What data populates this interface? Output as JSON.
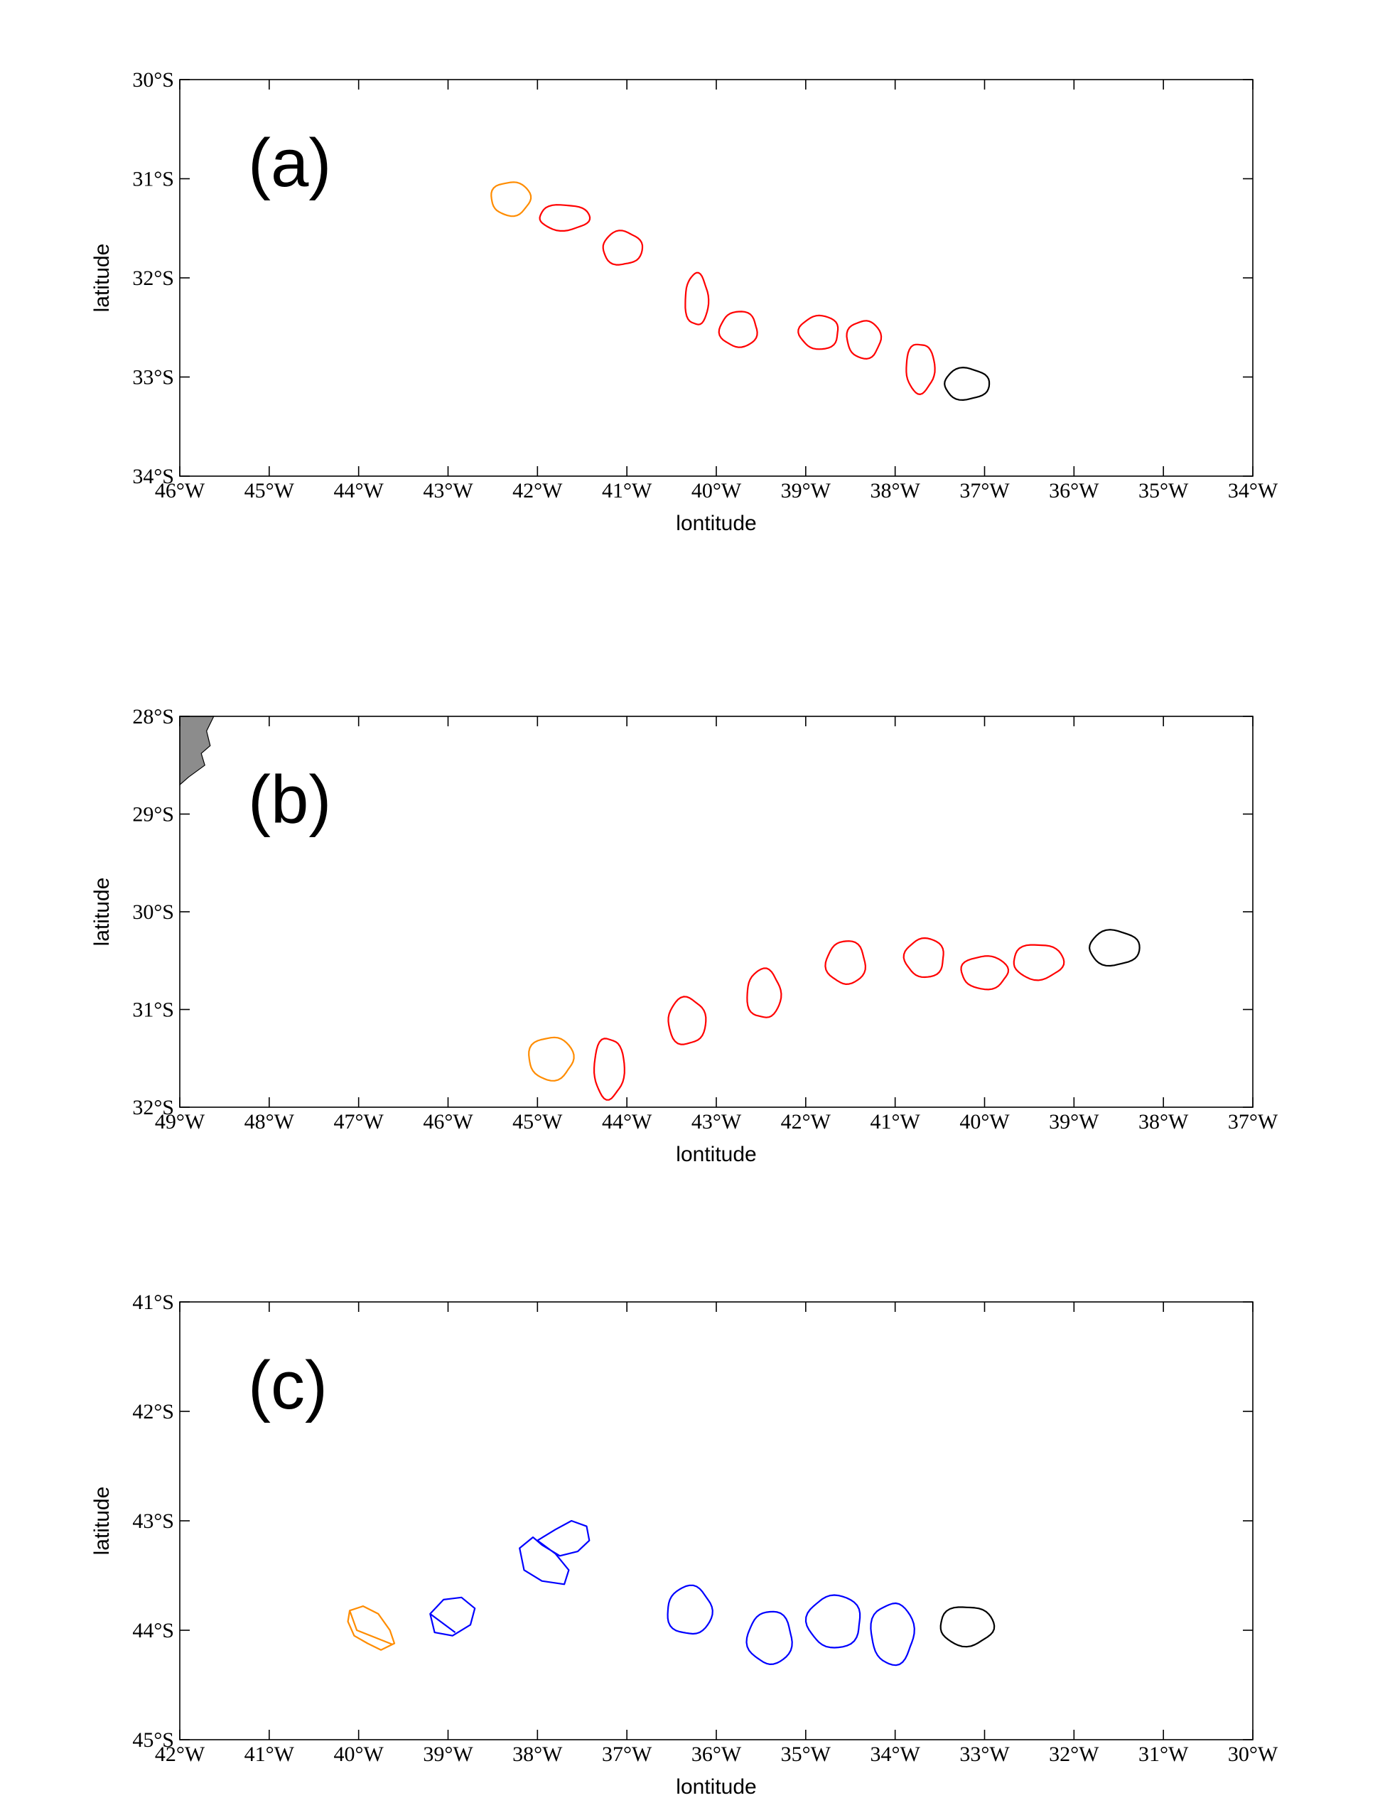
{
  "colors": {
    "orange": "#ff8c00",
    "red": "#ff0000",
    "blue": "#0000ff",
    "black": "#000000",
    "land": "#8c8c8c"
  },
  "chart_data": [
    {
      "type": "line",
      "panel_label": "(a)",
      "xlabel": "lontitude",
      "ylabel": "latitude",
      "xlim": [
        -46,
        -34
      ],
      "ylim": [
        -34,
        -30
      ],
      "x_ticks": [
        -46,
        -45,
        -44,
        -43,
        -42,
        -41,
        -40,
        -39,
        -38,
        -37,
        -36,
        -35,
        -34
      ],
      "x_tick_labels": [
        "46°W",
        "45°W",
        "44°W",
        "43°W",
        "42°W",
        "41°W",
        "40°W",
        "39°W",
        "38°W",
        "37°W",
        "36°W",
        "35°W",
        "34°W"
      ],
      "y_ticks": [
        -30,
        -31,
        -32,
        -33,
        -34
      ],
      "y_tick_labels": [
        "30°S",
        "31°S",
        "32°S",
        "33°S",
        "34°S"
      ],
      "grid": false,
      "land": [],
      "eddies": [
        {
          "color": "orange",
          "cx": -42.3,
          "cy": -31.2,
          "rx": 0.22,
          "ry": 0.17
        },
        {
          "color": "red",
          "cx": -41.7,
          "cy": -31.39,
          "rx": 0.28,
          "ry": 0.13
        },
        {
          "color": "red",
          "cx": -41.05,
          "cy": -31.7,
          "rx": 0.22,
          "ry": 0.17
        },
        {
          "color": "red",
          "cx": -40.22,
          "cy": -32.22,
          "rx": 0.13,
          "ry": 0.26
        },
        {
          "color": "red",
          "cx": -39.75,
          "cy": -32.52,
          "rx": 0.21,
          "ry": 0.18
        },
        {
          "color": "red",
          "cx": -38.85,
          "cy": -32.55,
          "rx": 0.22,
          "ry": 0.17
        },
        {
          "color": "red",
          "cx": -38.35,
          "cy": -32.62,
          "rx": 0.19,
          "ry": 0.19
        },
        {
          "color": "red",
          "cx": -37.72,
          "cy": -32.91,
          "rx": 0.16,
          "ry": 0.25
        },
        {
          "color": "black",
          "cx": -37.2,
          "cy": -33.07,
          "rx": 0.25,
          "ry": 0.16
        }
      ]
    },
    {
      "type": "line",
      "panel_label": "(b)",
      "xlabel": "lontitude",
      "ylabel": "latitude",
      "xlim": [
        -49,
        -37
      ],
      "ylim": [
        -32,
        -28
      ],
      "x_ticks": [
        -49,
        -48,
        -47,
        -46,
        -45,
        -44,
        -43,
        -42,
        -41,
        -40,
        -39,
        -38,
        -37
      ],
      "x_tick_labels": [
        "49°W",
        "48°W",
        "47°W",
        "46°W",
        "45°W",
        "44°W",
        "43°W",
        "42°W",
        "41°W",
        "40°W",
        "39°W",
        "38°W",
        "37°W"
      ],
      "y_ticks": [
        -28,
        -29,
        -30,
        -31,
        -32
      ],
      "y_tick_labels": [
        "28°S",
        "29°S",
        "30°S",
        "31°S",
        "32°S"
      ],
      "grid": false,
      "land": [
        [
          [
            -49.0,
            -28.0
          ],
          [
            -48.62,
            -28.0
          ],
          [
            -48.7,
            -28.15
          ],
          [
            -48.66,
            -28.3
          ],
          [
            -48.76,
            -28.38
          ],
          [
            -48.72,
            -28.5
          ],
          [
            -48.9,
            -28.62
          ],
          [
            -49.0,
            -28.7
          ]
        ]
      ],
      "eddies": [
        {
          "color": "orange",
          "cx": -44.85,
          "cy": -31.5,
          "rx": 0.25,
          "ry": 0.22
        },
        {
          "color": "red",
          "cx": -44.2,
          "cy": -31.6,
          "rx": 0.17,
          "ry": 0.31
        },
        {
          "color": "red",
          "cx": -43.33,
          "cy": -31.12,
          "rx": 0.21,
          "ry": 0.24
        },
        {
          "color": "red",
          "cx": -42.47,
          "cy": -30.84,
          "rx": 0.19,
          "ry": 0.25
        },
        {
          "color": "red",
          "cx": -41.55,
          "cy": -30.52,
          "rx": 0.22,
          "ry": 0.22
        },
        {
          "color": "red",
          "cx": -40.67,
          "cy": -30.47,
          "rx": 0.22,
          "ry": 0.2
        },
        {
          "color": "red",
          "cx": -40.0,
          "cy": -30.62,
          "rx": 0.26,
          "ry": 0.17
        },
        {
          "color": "red",
          "cx": -39.4,
          "cy": -30.51,
          "rx": 0.28,
          "ry": 0.18
        },
        {
          "color": "black",
          "cx": -38.55,
          "cy": -30.37,
          "rx": 0.28,
          "ry": 0.18
        }
      ]
    },
    {
      "type": "line",
      "panel_label": "(c)",
      "xlabel": "lontitude",
      "ylabel": "latitude",
      "xlim": [
        -42,
        -30
      ],
      "ylim": [
        -45,
        -41
      ],
      "x_ticks": [
        -42,
        -41,
        -40,
        -39,
        -38,
        -37,
        -36,
        -35,
        -34,
        -33,
        -32,
        -31,
        -30
      ],
      "x_tick_labels": [
        "42°W",
        "41°W",
        "40°W",
        "39°W",
        "38°W",
        "37°W",
        "36°W",
        "35°W",
        "34°W",
        "33°W",
        "32°W",
        "31°W",
        "30°W"
      ],
      "y_ticks": [
        -41,
        -42,
        -43,
        -44,
        -45
      ],
      "y_tick_labels": [
        "41°S",
        "42°S",
        "43°S",
        "44°S",
        "45°S"
      ],
      "grid": false,
      "land": [],
      "eddies": [
        {
          "color": "orange",
          "path": [
            [
              -40.1,
              -43.82
            ],
            [
              -39.95,
              -43.78
            ],
            [
              -39.78,
              -43.85
            ],
            [
              -39.65,
              -44.0
            ],
            [
              -39.6,
              -44.12
            ],
            [
              -39.75,
              -44.18
            ],
            [
              -39.9,
              -44.12
            ],
            [
              -40.05,
              -44.05
            ],
            [
              -40.12,
              -43.92
            ],
            [
              -40.1,
              -43.82
            ],
            [
              -40.02,
              -44.0
            ],
            [
              -39.62,
              -44.13
            ]
          ]
        },
        {
          "color": "blue",
          "path": [
            [
              -39.2,
              -43.85
            ],
            [
              -39.05,
              -43.72
            ],
            [
              -38.85,
              -43.7
            ],
            [
              -38.7,
              -43.8
            ],
            [
              -38.75,
              -43.95
            ],
            [
              -38.95,
              -44.05
            ],
            [
              -39.15,
              -44.02
            ],
            [
              -39.2,
              -43.85
            ],
            [
              -38.92,
              -44.02
            ]
          ]
        },
        {
          "color": "blue",
          "path": [
            [
              -38.0,
              -43.18
            ],
            [
              -37.8,
              -43.08
            ],
            [
              -37.62,
              -43.0
            ],
            [
              -37.45,
              -43.05
            ],
            [
              -37.42,
              -43.18
            ],
            [
              -37.55,
              -43.28
            ],
            [
              -37.75,
              -43.32
            ],
            [
              -37.95,
              -43.22
            ],
            [
              -38.05,
              -43.15
            ],
            [
              -38.2,
              -43.25
            ],
            [
              -38.15,
              -43.45
            ],
            [
              -37.95,
              -43.55
            ],
            [
              -37.7,
              -43.58
            ],
            [
              -37.65,
              -43.45
            ],
            [
              -37.8,
              -43.3
            ],
            [
              -38.0,
              -43.18
            ]
          ]
        },
        {
          "color": "blue",
          "cx": -36.3,
          "cy": -43.82,
          "rx": 0.25,
          "ry": 0.22
        },
        {
          "color": "blue",
          "cx": -35.4,
          "cy": -44.07,
          "rx": 0.25,
          "ry": 0.24
        },
        {
          "color": "blue",
          "cx": -34.68,
          "cy": -43.92,
          "rx": 0.3,
          "ry": 0.24
        },
        {
          "color": "blue",
          "cx": -34.03,
          "cy": -44.03,
          "rx": 0.24,
          "ry": 0.28
        },
        {
          "color": "black",
          "cx": -33.2,
          "cy": -43.96,
          "rx": 0.3,
          "ry": 0.18
        }
      ]
    }
  ]
}
